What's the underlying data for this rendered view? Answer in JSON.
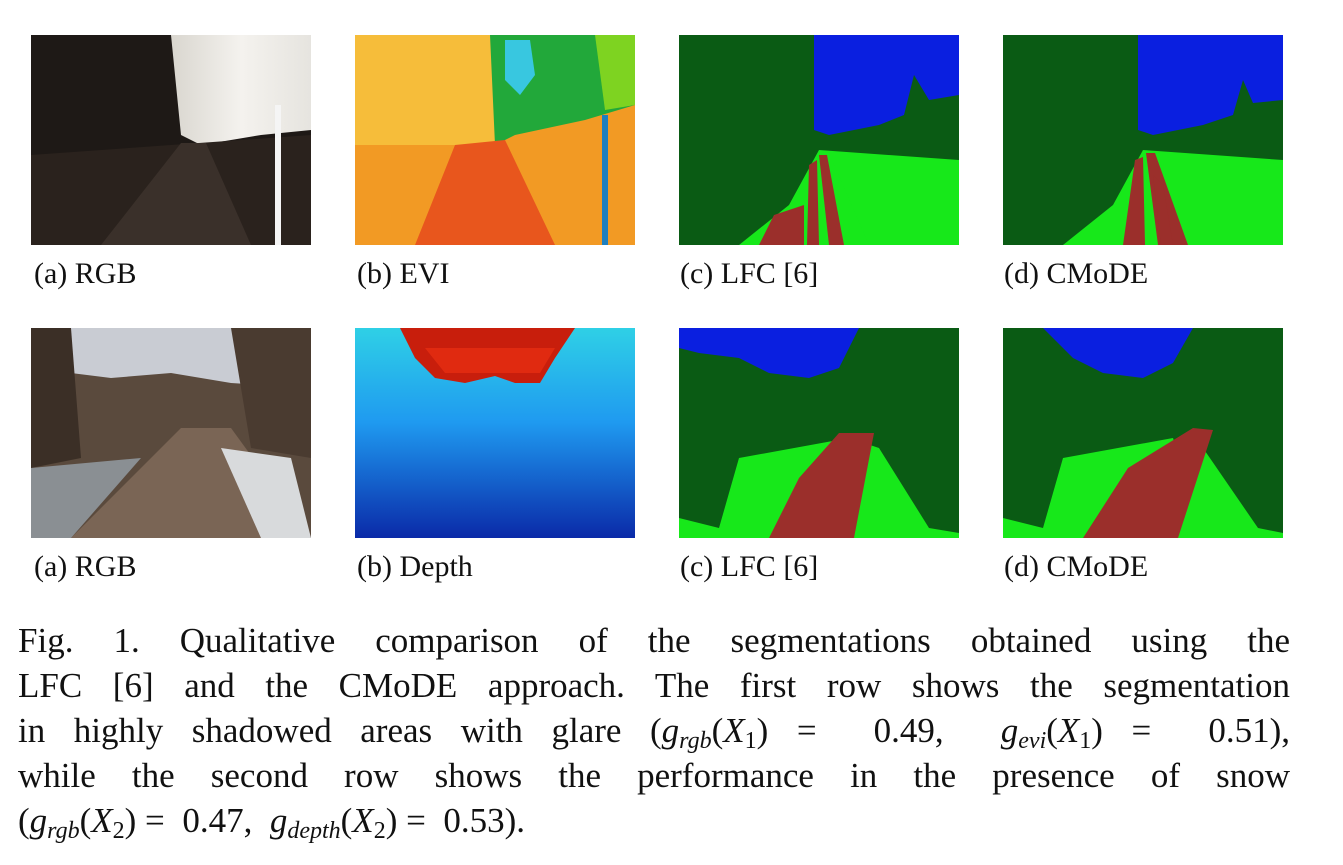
{
  "row1": {
    "a": "(a) RGB",
    "b": "(b) EVI",
    "c": "(c) LFC [6]",
    "d": "(d) CMoDE"
  },
  "row2": {
    "a": "(a) RGB",
    "b": "(b) Depth",
    "c": "(c) LFC [6]",
    "d": "(d) CMoDE"
  },
  "caption": {
    "line1": "Fig. 1.    Qualitative comparison of the segmentations obtained using the",
    "line2": "LFC [6] and the CMoDE approach. The first row shows the segmentation",
    "line3_text": "in highly shadowed areas with glare (",
    "g_rgb_x1": "0.49",
    "g_evi_x1": "0.51",
    "line4": "while the second row shows the performance in the presence of snow",
    "g_rgb_x2": "0.47",
    "g_depth_x2": "0.53"
  },
  "colors": {
    "sky": "#0a1fe0",
    "vegetation": "#0a5b14",
    "grass": "#17e81a",
    "road": "#9b2f2b"
  }
}
